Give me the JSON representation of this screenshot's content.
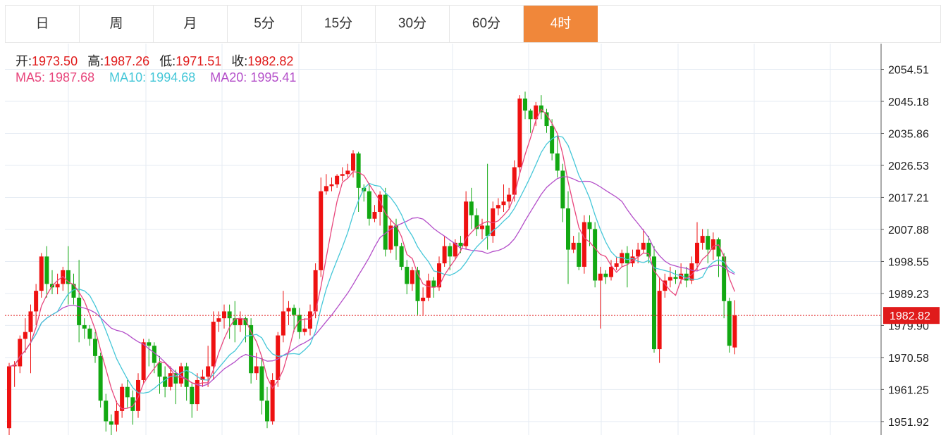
{
  "tabs": [
    {
      "label": "日",
      "active": false
    },
    {
      "label": "周",
      "active": false
    },
    {
      "label": "月",
      "active": false
    },
    {
      "label": "5分",
      "active": false
    },
    {
      "label": "15分",
      "active": false
    },
    {
      "label": "30分",
      "active": false
    },
    {
      "label": "60分",
      "active": false
    },
    {
      "label": "4时",
      "active": true
    }
  ],
  "ohlc": {
    "open_label": "开:",
    "open": "1973.50",
    "high_label": "高:",
    "high": "1987.26",
    "low_label": "低:",
    "low": "1971.51",
    "close_label": "收:",
    "close": "1982.82"
  },
  "ma": {
    "ma5_label": "MA5:",
    "ma5": "1987.68",
    "ma10_label": "MA10:",
    "ma10": "1994.68",
    "ma20_label": "MA20:",
    "ma20": "1995.41"
  },
  "colors": {
    "up": "#ee1111",
    "down": "#12a812",
    "ma5": "#e8467c",
    "ma10": "#45c7d8",
    "ma20": "#b44fc9",
    "grid": "#e5ebf3",
    "accent": "#f0873a",
    "price_line": "#e01b1b"
  },
  "chart_data": {
    "type": "candlestick",
    "title": "",
    "ylim": [
      1948.0,
      2062.0
    ],
    "y_ticks": [
      "2054.51",
      "2045.18",
      "2035.86",
      "2026.53",
      "2017.21",
      "2007.88",
      "1998.55",
      "1989.23",
      "1979.90",
      "1970.58",
      "1961.25",
      "1951.92"
    ],
    "current_price": "1982.82",
    "candles": [
      [
        1950.0,
        1968.0,
        1948.0,
        1969.0
      ],
      [
        1968.0,
        1968.5,
        1962.0,
        1969.5
      ],
      [
        1968.0,
        1976.0,
        1966.0,
        1977.0
      ],
      [
        1976.0,
        1978.0,
        1972.0,
        1982.0
      ],
      [
        1978.0,
        1984.0,
        1966.0,
        1986.0
      ],
      [
        1984.0,
        1990.0,
        1980.0,
        1992.0
      ],
      [
        1990.0,
        2000.0,
        1988.0,
        2001.0
      ],
      [
        2000.0,
        1992.0,
        1988.0,
        2003.0
      ],
      [
        1992.0,
        1991.0,
        1989.0,
        1996.0
      ],
      [
        1991.0,
        1992.0,
        1989.0,
        1995.0
      ],
      [
        1992.0,
        1996.0,
        1990.0,
        1997.0
      ],
      [
        1996.0,
        1992.0,
        1986.0,
        2003.0
      ],
      [
        1992.0,
        1988.0,
        1986.0,
        1995.0
      ],
      [
        1988.0,
        1980.0,
        1975.0,
        1999.0
      ],
      [
        1980.0,
        1979.0,
        1976.0,
        1982.0
      ],
      [
        1979.0,
        1976.0,
        1974.0,
        1980.0
      ],
      [
        1976.0,
        1971.0,
        1969.0,
        1978.0
      ],
      [
        1971.0,
        1958.0,
        1956.0,
        1972.0
      ],
      [
        1958.0,
        1952.0,
        1949.0,
        1960.0
      ],
      [
        1952.0,
        1951.0,
        1948.0,
        1954.0
      ],
      [
        1951.0,
        1955.0,
        1949.0,
        1958.0
      ],
      [
        1955.0,
        1962.0,
        1953.0,
        1963.0
      ],
      [
        1962.0,
        1959.0,
        1956.0,
        1964.0
      ],
      [
        1959.0,
        1955.0,
        1951.0,
        1961.0
      ],
      [
        1955.0,
        1964.0,
        1953.0,
        1966.0
      ],
      [
        1964.0,
        1975.0,
        1963.0,
        1976.0
      ],
      [
        1975.0,
        1974.0,
        1968.0,
        1976.0
      ],
      [
        1974.0,
        1969.0,
        1966.0,
        1975.0
      ],
      [
        1969.0,
        1965.0,
        1960.0,
        1971.0
      ],
      [
        1965.0,
        1962.0,
        1959.0,
        1968.0
      ],
      [
        1962.0,
        1966.0,
        1961.0,
        1968.0
      ],
      [
        1966.0,
        1963.0,
        1957.0,
        1967.0
      ],
      [
        1963.0,
        1968.0,
        1962.0,
        1969.0
      ],
      [
        1968.0,
        1962.0,
        1958.0,
        1969.0
      ],
      [
        1962.0,
        1957.0,
        1953.0,
        1963.0
      ],
      [
        1957.0,
        1964.0,
        1955.0,
        1966.0
      ],
      [
        1964.0,
        1965.0,
        1962.0,
        1967.0
      ],
      [
        1965.0,
        1968.0,
        1962.0,
        1974.0
      ],
      [
        1968.0,
        1981.0,
        1964.0,
        1984.0
      ],
      [
        1981.0,
        1982.0,
        1978.0,
        1984.0
      ],
      [
        1982.0,
        1984.0,
        1979.0,
        1986.0
      ],
      [
        1984.0,
        1982.0,
        1976.0,
        1986.0
      ],
      [
        1982.0,
        1980.0,
        1975.0,
        1987.0
      ],
      [
        1980.0,
        1982.0,
        1978.0,
        1984.0
      ],
      [
        1982.0,
        1980.0,
        1975.0,
        1982.5
      ],
      [
        1980.0,
        1966.0,
        1963.0,
        1982.0
      ],
      [
        1966.0,
        1968.0,
        1964.0,
        1972.0
      ],
      [
        1968.0,
        1958.0,
        1954.0,
        1971.0
      ],
      [
        1958.0,
        1952.0,
        1950.0,
        1962.0
      ],
      [
        1952.0,
        1964.0,
        1951.0,
        1966.0
      ],
      [
        1964.0,
        1977.0,
        1962.0,
        1978.0
      ],
      [
        1977.0,
        1984.0,
        1975.0,
        1990.0
      ],
      [
        1984.0,
        1985.0,
        1980.0,
        1987.0
      ],
      [
        1985.0,
        1983.0,
        1978.0,
        1986.0
      ],
      [
        1983.0,
        1978.0,
        1976.0,
        1985.0
      ],
      [
        1978.0,
        1979.0,
        1977.0,
        1982.0
      ],
      [
        1979.0,
        1984.0,
        1977.0,
        1986.0
      ],
      [
        1984.0,
        1996.0,
        1982.0,
        1998.0
      ],
      [
        1996.0,
        2019.0,
        1994.0,
        2023.0
      ],
      [
        2019.0,
        2020.5,
        2018.0,
        2024.0
      ],
      [
        2020.5,
        2021.0,
        2019.0,
        2023.0
      ],
      [
        2021.0,
        2023.5,
        2020.0,
        2024.0
      ],
      [
        2023.5,
        2024.0,
        2022.0,
        2026.0
      ],
      [
        2024.0,
        2025.0,
        2023.0,
        2027.0
      ],
      [
        2025.0,
        2030.0,
        2023.0,
        2031.0
      ],
      [
        2030.0,
        2020.0,
        2013.0,
        2030.5
      ],
      [
        2020.0,
        2019.0,
        2016.0,
        2021.0
      ],
      [
        2019.0,
        2011.0,
        2009.0,
        2021.0
      ],
      [
        2011.0,
        2013.0,
        2010.0,
        2015.0
      ],
      [
        2013.0,
        2018.0,
        2009.0,
        2019.0
      ],
      [
        2018.0,
        2002.0,
        2000.0,
        2020.0
      ],
      [
        2002.0,
        2009.0,
        2001.0,
        2011.0
      ],
      [
        2009.0,
        2003.0,
        1999.0,
        2011.0
      ],
      [
        2003.0,
        1997.0,
        1996.0,
        2004.0
      ],
      [
        1997.0,
        1992.0,
        1989.0,
        1999.0
      ],
      [
        1992.0,
        1996.0,
        1990.0,
        1997.0
      ],
      [
        1996.0,
        1987.0,
        1983.0,
        1997.0
      ],
      [
        1987.0,
        1988.0,
        1983.0,
        1991.0
      ],
      [
        1988.0,
        1993.0,
        1987.0,
        1995.0
      ],
      [
        1993.0,
        1991.0,
        1988.0,
        1994.0
      ],
      [
        1991.0,
        1998.0,
        1990.0,
        2000.0
      ],
      [
        1998.0,
        2003.0,
        1997.0,
        2006.0
      ],
      [
        2003.0,
        2000.0,
        1996.0,
        2004.0
      ],
      [
        2000.0,
        2004.0,
        1999.0,
        2005.0
      ],
      [
        2004.0,
        2003.0,
        2001.0,
        2006.0
      ],
      [
        2003.0,
        2016.0,
        2002.0,
        2019.0
      ],
      [
        2016.0,
        2012.0,
        2008.0,
        2020.0
      ],
      [
        2012.0,
        2008.0,
        2006.0,
        2014.0
      ],
      [
        2008.0,
        2009.0,
        2005.0,
        2011.0
      ],
      [
        2009.0,
        2006.0,
        2002.0,
        2027.0
      ],
      [
        2006.0,
        2014.0,
        2004.0,
        2016.0
      ],
      [
        2014.0,
        2015.0,
        2012.0,
        2017.0
      ],
      [
        2015.0,
        2016.0,
        2013.0,
        2021.0
      ],
      [
        2016.0,
        2018.0,
        2014.0,
        2020.0
      ],
      [
        2018.0,
        2026.0,
        2016.0,
        2028.0
      ],
      [
        2026.0,
        2046.0,
        2024.0,
        2047.0
      ],
      [
        2046.0,
        2042.5,
        2040.0,
        2048.0
      ],
      [
        2042.5,
        2040.0,
        2036.0,
        2043.0
      ],
      [
        2040.0,
        2044.0,
        2038.0,
        2045.0
      ],
      [
        2044.0,
        2042.0,
        2040.0,
        2047.0
      ],
      [
        2042.0,
        2038.0,
        2036.0,
        2043.0
      ],
      [
        2038.0,
        2030.0,
        2028.0,
        2040.0
      ],
      [
        2030.0,
        2025.0,
        2023.0,
        2035.0
      ],
      [
        2025.0,
        2014.0,
        2010.0,
        2027.0
      ],
      [
        2014.0,
        2002.0,
        1992.0,
        2019.0
      ],
      [
        2002.0,
        2004.0,
        2001.0,
        2006.0
      ],
      [
        2004.0,
        1997.0,
        1996.0,
        2007.0
      ],
      [
        1997.0,
        2010.0,
        1995.0,
        2012.0
      ],
      [
        2010.0,
        2008.0,
        2003.0,
        2012.0
      ],
      [
        2008.0,
        1993.0,
        1991.0,
        2010.0
      ],
      [
        1993.0,
        1995.0,
        1979.0,
        1997.0
      ],
      [
        1995.0,
        1994.0,
        1992.0,
        1996.0
      ],
      [
        1994.0,
        1997.0,
        1993.0,
        1999.0
      ],
      [
        1997.0,
        1998.0,
        1996.0,
        2000.0
      ],
      [
        1998.0,
        2001.0,
        1997.0,
        2002.0
      ],
      [
        2001.0,
        1998.0,
        1991.0,
        2003.0
      ],
      [
        1998.0,
        2000.0,
        1997.0,
        2002.0
      ],
      [
        2000.0,
        2002.0,
        1998.0,
        2004.0
      ],
      [
        2002.0,
        2004.0,
        2001.0,
        2008.0
      ],
      [
        2004.0,
        2000.0,
        1998.0,
        2006.0
      ],
      [
        2000.0,
        1973.0,
        1972.0,
        2003.0
      ],
      [
        1973.0,
        1990.0,
        1969.0,
        1994.0
      ],
      [
        1990.0,
        1993.0,
        1988.0,
        1995.0
      ],
      [
        1993.0,
        1994.0,
        1991.0,
        1997.0
      ],
      [
        1994.0,
        1993.5,
        1992.0,
        1996.0
      ],
      [
        1993.5,
        1995.0,
        1992.0,
        1998.0
      ],
      [
        1995.0,
        1993.0,
        1991.0,
        1997.0
      ],
      [
        1993.0,
        1998.0,
        1992.0,
        2000.0
      ],
      [
        1998.0,
        2004.0,
        1996.0,
        2010.0
      ],
      [
        2004.0,
        2006.0,
        2002.0,
        2008.0
      ],
      [
        2006.0,
        2002.0,
        1998.0,
        2008.0
      ],
      [
        2002.0,
        2005.0,
        1999.0,
        2007.0
      ],
      [
        2005.0,
        2000.0,
        1994.0,
        2005.5
      ],
      [
        2000.0,
        1987.0,
        1982.0,
        2001.0
      ],
      [
        1987.0,
        1974.0,
        1972.0,
        1988.0
      ],
      [
        1973.5,
        1982.82,
        1971.51,
        1987.26
      ]
    ]
  }
}
